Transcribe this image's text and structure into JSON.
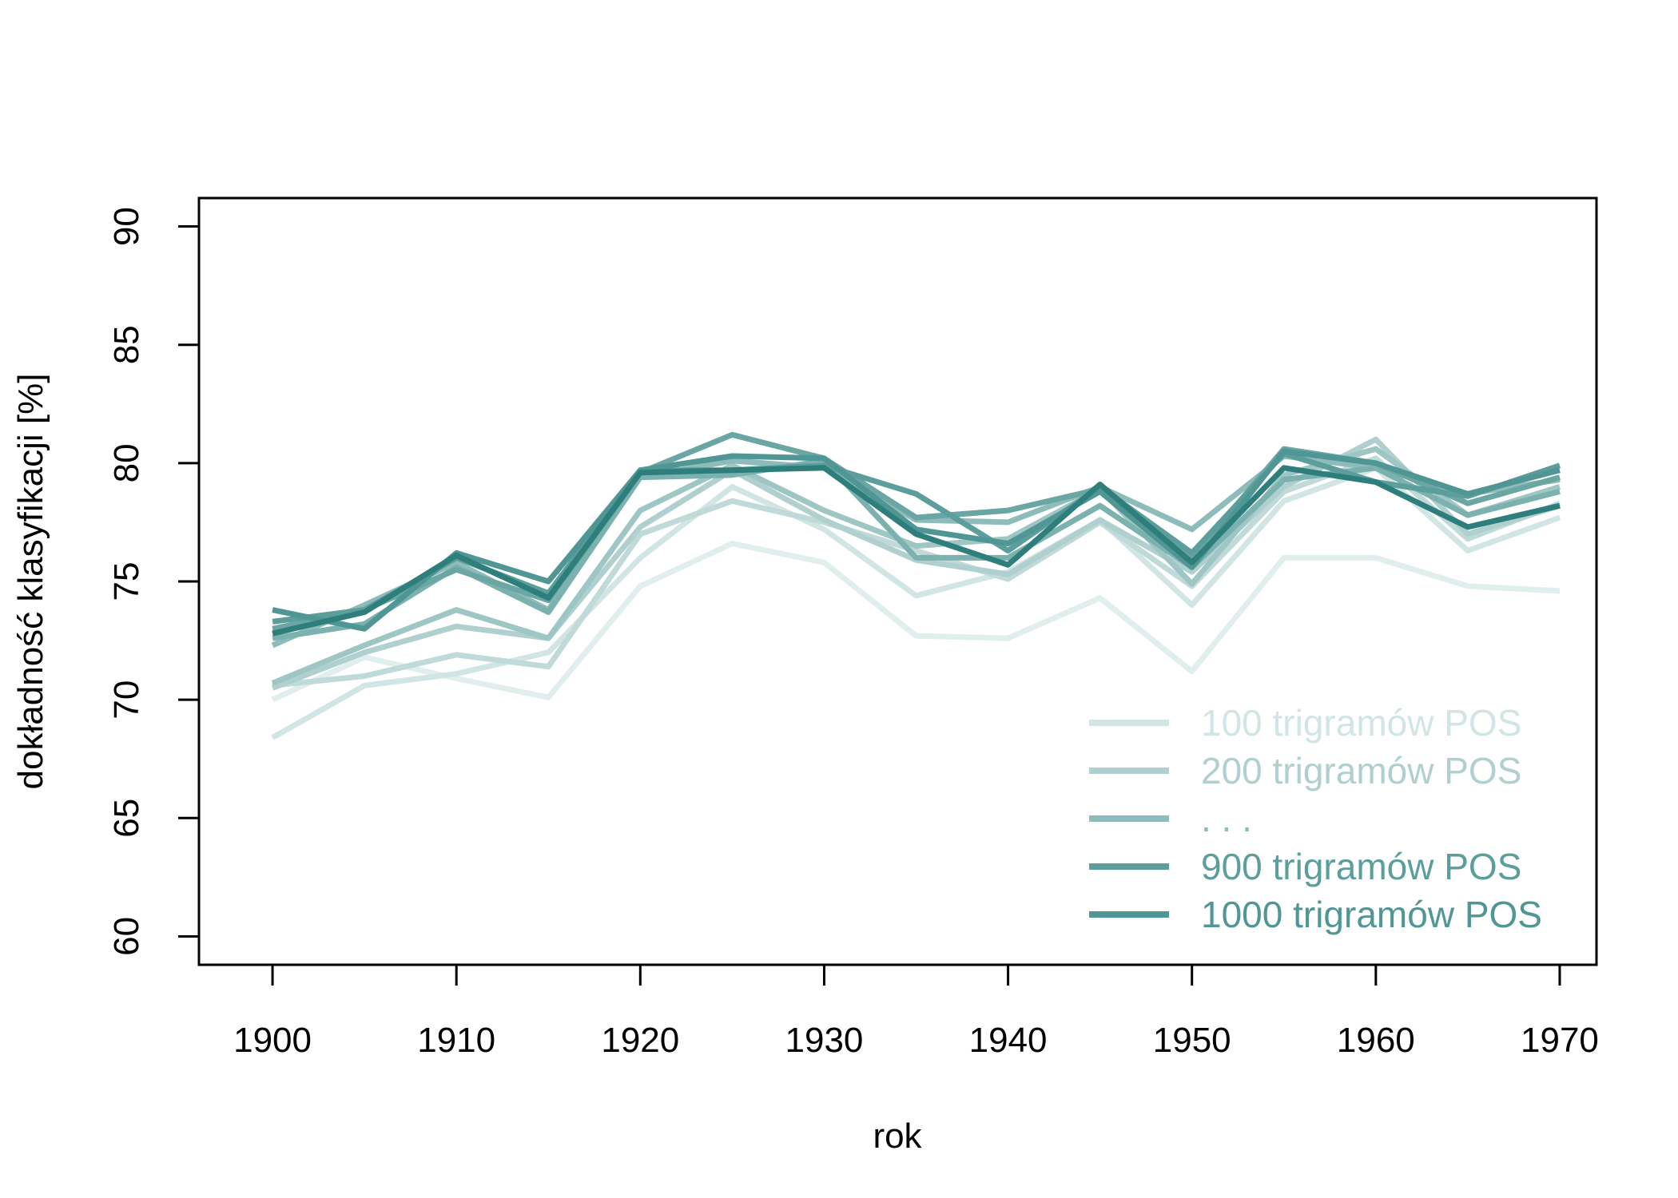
{
  "chart_data": {
    "type": "line",
    "xlabel": "rok",
    "ylabel": "dokładność klasyfikacji [%]",
    "xlim": [
      1896,
      1972
    ],
    "ylim": [
      58.8,
      91.2
    ],
    "x_ticks": [
      1900,
      1910,
      1920,
      1930,
      1940,
      1950,
      1960,
      1970
    ],
    "y_ticks": [
      60,
      65,
      70,
      75,
      80,
      85,
      90
    ],
    "grid": false,
    "legend_position": "bottom-right",
    "x": [
      1900,
      1905,
      1910,
      1915,
      1920,
      1925,
      1930,
      1935,
      1940,
      1945,
      1950,
      1955,
      1960,
      1965,
      1970
    ],
    "legend": [
      {
        "label": "100 trigramów POS",
        "color": "#d2e5e5"
      },
      {
        "label": "200 trigramów POS",
        "color": "#b0d0cf"
      },
      {
        "label": ". . .",
        "color": "#8dbcba"
      },
      {
        "label": "900 trigramów POS",
        "color": "#5b9e9c"
      },
      {
        "label": "1000 trigramów POS",
        "color": "#4f9694"
      }
    ],
    "series": [
      {
        "color": "#e1eeee",
        "values": [
          70.0,
          71.8,
          70.9,
          70.1,
          74.8,
          76.6,
          75.8,
          72.7,
          72.6,
          74.3,
          71.2,
          76.0,
          76.0,
          74.8,
          74.6
        ]
      },
      {
        "color": "#d2e5e5",
        "values": [
          68.4,
          70.6,
          71.1,
          72.0,
          76.0,
          79.0,
          77.2,
          74.4,
          75.4,
          77.6,
          74.0,
          78.4,
          79.8,
          76.3,
          77.7
        ]
      },
      {
        "color": "#c0dad9",
        "values": [
          70.6,
          71.0,
          71.9,
          71.4,
          77.0,
          78.4,
          77.5,
          76.3,
          75.1,
          77.5,
          74.8,
          78.8,
          80.2,
          76.8,
          78.3
        ]
      },
      {
        "color": "#b0d0cf",
        "values": [
          70.5,
          72.0,
          73.1,
          72.6,
          77.3,
          79.7,
          77.6,
          75.9,
          75.3,
          77.6,
          75.4,
          79.0,
          81.0,
          77.0,
          78.2
        ]
      },
      {
        "color": "#9ec6c4",
        "values": [
          70.7,
          72.3,
          73.8,
          72.6,
          78.0,
          79.9,
          78.0,
          76.5,
          76.8,
          78.9,
          74.9,
          79.5,
          80.6,
          77.8,
          79.0
        ]
      },
      {
        "color": "#8dbcba",
        "values": [
          72.3,
          74.0,
          75.8,
          73.8,
          79.4,
          80.1,
          79.8,
          77.6,
          77.5,
          79.0,
          77.2,
          80.3,
          79.8,
          78.7,
          79.3
        ]
      },
      {
        "color": "#7bb1af",
        "values": [
          72.6,
          73.2,
          75.6,
          73.7,
          79.4,
          79.5,
          80.1,
          76.0,
          76.0,
          78.2,
          75.6,
          79.3,
          79.8,
          77.8,
          78.8
        ]
      },
      {
        "color": "#6aa6a4",
        "values": [
          73.0,
          73.8,
          75.5,
          74.2,
          79.6,
          81.2,
          80.2,
          77.7,
          78.0,
          78.9,
          76.0,
          80.6,
          80.0,
          78.3,
          79.4
        ]
      },
      {
        "color": "#5b9e9c",
        "values": [
          73.3,
          73.8,
          76.0,
          74.5,
          79.7,
          79.7,
          79.9,
          78.7,
          76.3,
          79.0,
          76.2,
          80.4,
          79.2,
          78.6,
          79.9
        ]
      },
      {
        "color": "#4f9694",
        "values": [
          73.8,
          73.0,
          76.2,
          75.0,
          79.7,
          80.3,
          80.2,
          77.2,
          76.6,
          78.8,
          75.6,
          80.5,
          80.0,
          78.7,
          79.7
        ]
      },
      {
        "color": "#2e7e7c",
        "values": [
          72.8,
          73.7,
          76.1,
          74.3,
          79.6,
          79.7,
          79.8,
          77.0,
          75.7,
          79.1,
          75.8,
          79.8,
          79.2,
          77.3,
          78.2
        ]
      }
    ]
  }
}
